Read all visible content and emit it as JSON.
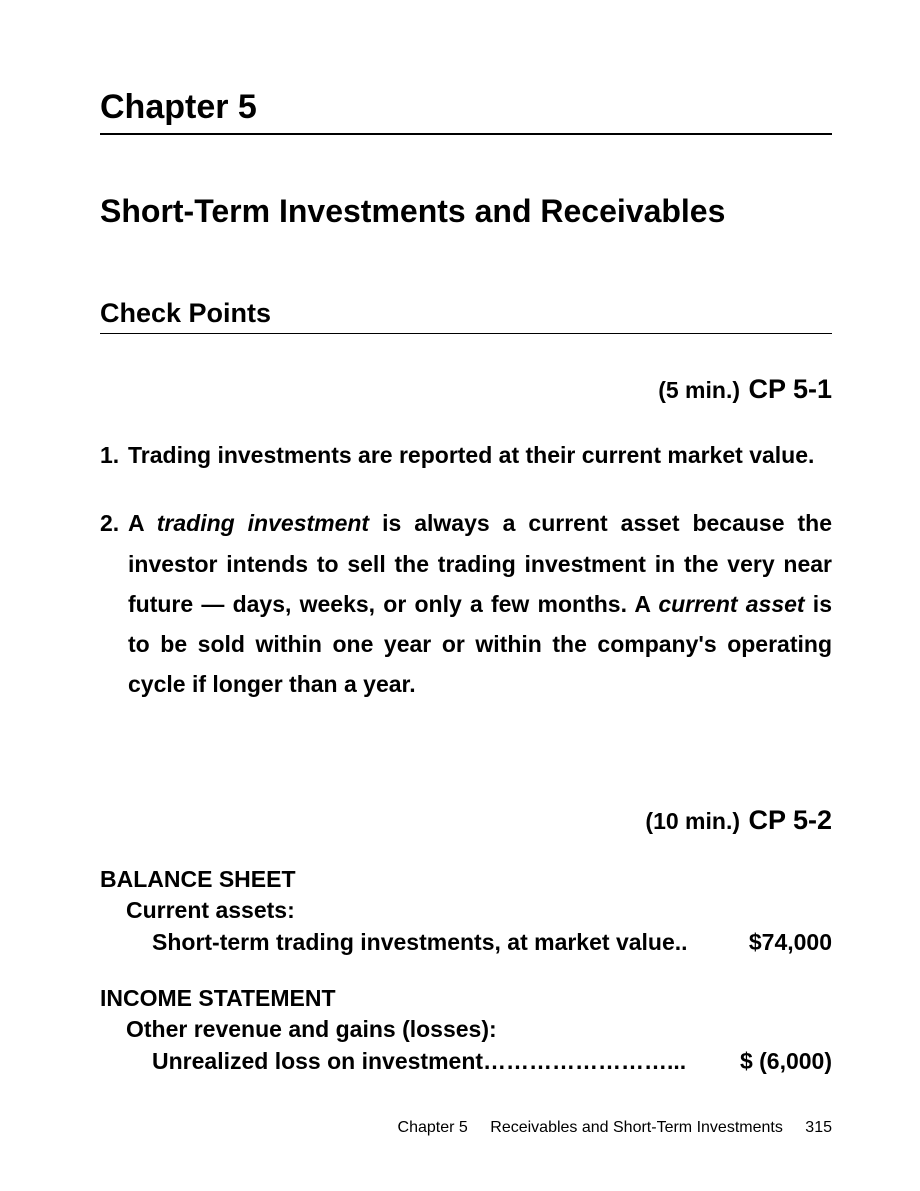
{
  "chapter": {
    "title": "Chapter 5",
    "subtitle": "Short-Term Investments and Receivables"
  },
  "section": {
    "heading": "Check Points"
  },
  "cp1": {
    "time": "(5 min.)",
    "label": "CP 5-1",
    "items": [
      {
        "number": "1.",
        "text": "Trading investments are reported at their current market value."
      },
      {
        "number": "2.",
        "prefix": "A ",
        "italic1": "trading investment",
        "mid": " is always a current asset because the investor intends to sell the trading investment in the very near future — days, weeks, or only a few months. A ",
        "italic2": "current asset",
        "suffix": " is to be sold within one year or within the company's operating cycle if longer than a year."
      }
    ]
  },
  "cp2": {
    "time": "(10 min.)",
    "label": "CP 5-2",
    "balance_sheet": {
      "title": "BALANCE SHEET",
      "subtitle": "Current assets:",
      "line_label": "Short-term trading investments, at market value..",
      "line_value": "$74,000"
    },
    "income_statement": {
      "title": "INCOME STATEMENT",
      "subtitle": "Other revenue and gains (losses):",
      "line_label": "Unrealized loss on investment……………………...",
      "line_value": "$ (6,000)"
    }
  },
  "footer": {
    "chapter": "Chapter 5",
    "text": "Receivables and Short-Term Investments",
    "page": "315"
  },
  "colors": {
    "background": "#ffffff",
    "text": "#000000",
    "rule": "#000000"
  },
  "typography": {
    "base_font": "Arial",
    "chapter_title_size": 34,
    "subtitle_size": 32,
    "heading_size": 27,
    "body_size": 23,
    "footer_size": 16
  }
}
